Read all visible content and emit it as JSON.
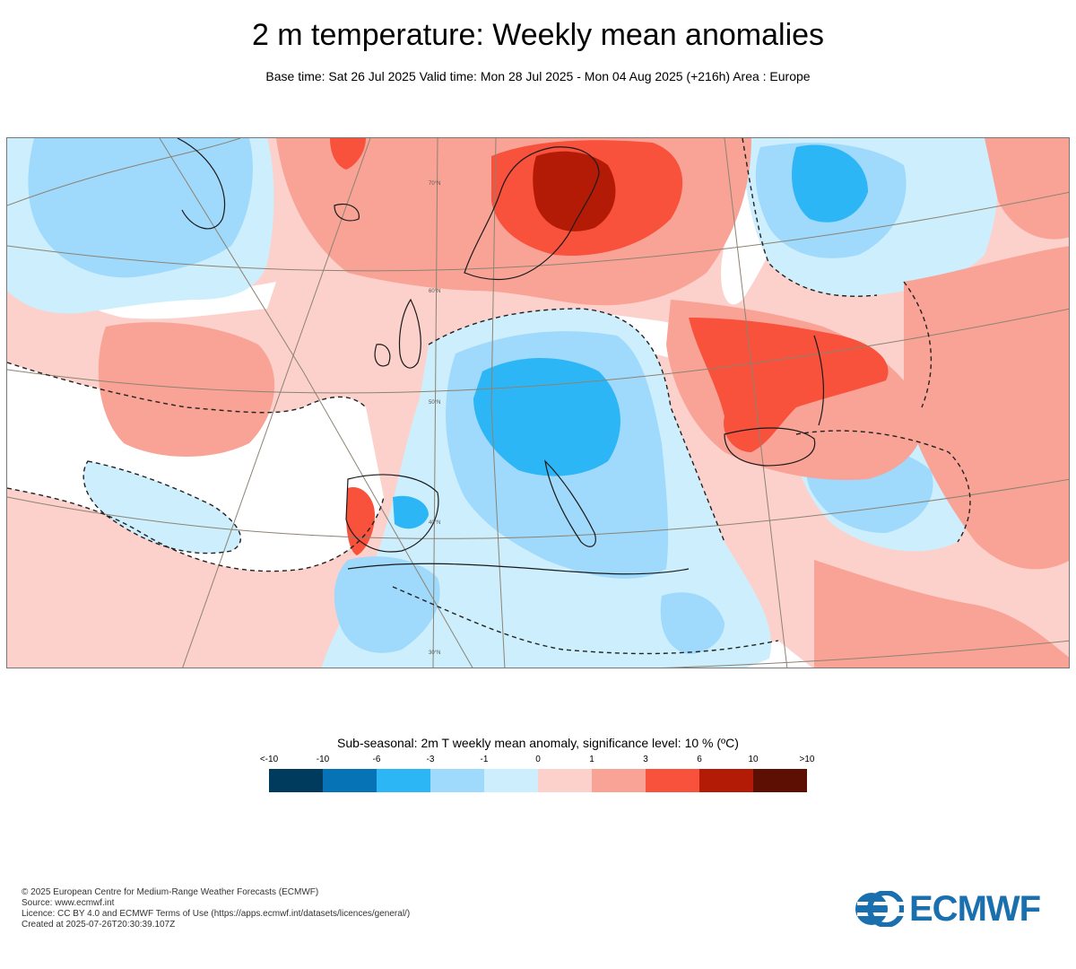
{
  "title": "2 m temperature: Weekly mean anomalies",
  "subtitle": "Base time: Sat 26 Jul 2025 Valid time: Mon 28 Jul 2025 - Mon 04 Aug 2025 (+216h) Area : Europe",
  "map": {
    "graticule_labels": [
      "70°N",
      "60°N",
      "50°N",
      "40°N",
      "30°N"
    ]
  },
  "legend": {
    "title": "Sub-seasonal: 2m T weekly mean anomaly, significance level: 10 % (ºC)",
    "labels": [
      "<-10",
      "-10",
      "-6",
      "-3",
      "-1",
      "0",
      "1",
      "3",
      "6",
      "10",
      ">10"
    ],
    "colors": [
      "#003b5e",
      "#0573b6",
      "#2db6f5",
      "#9fd9fb",
      "#cdeefc",
      "#fcd1cb",
      "#f9a396",
      "#f8513c",
      "#b41b06",
      "#5c0f02"
    ]
  },
  "footer": {
    "lines": [
      "© 2025 European Centre for Medium-Range Weather Forecasts (ECMWF)",
      "Source: www.ecmwf.int",
      "Licence: CC BY 4.0 and ECMWF Terms of Use (https://apps.ecmwf.int/datasets/licences/general/)",
      "Created at 2025-07-26T20:30:39.107Z"
    ]
  },
  "logo": {
    "text": "ECMWF",
    "color": "#1a6fae"
  }
}
